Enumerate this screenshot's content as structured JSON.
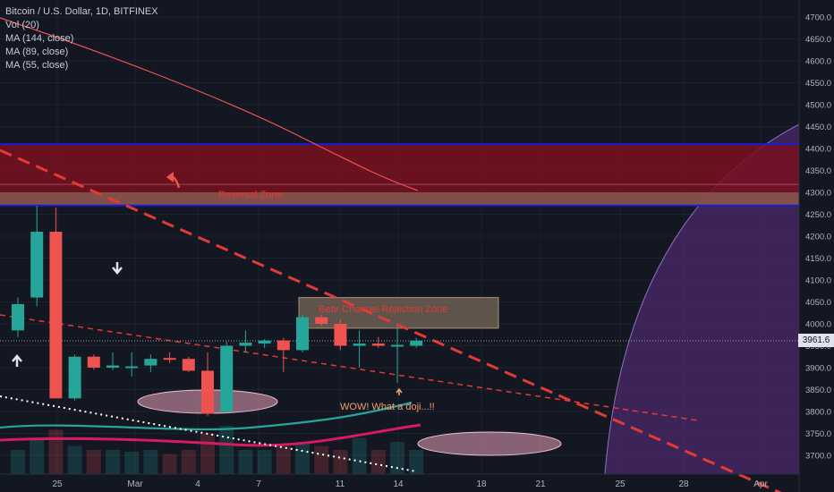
{
  "legend": {
    "symbol": "Bitcoin / U.S. Dollar, 1D, BITFINEX",
    "indicators": [
      "Vol (20)",
      "MA (144, close)",
      "MA (89, close)",
      "MA (55, close)"
    ]
  },
  "price_tag": "3961.6",
  "annotations": {
    "reversal_zone": "Reversal Zone",
    "bear_zone": "Bear Channel Rejection Zone",
    "wow": "WOW! What a doji...!!"
  },
  "colors": {
    "background": "#131722",
    "up_candle": "#26a69a",
    "down_candle": "#ef5350",
    "ma_144": "#ef5350",
    "ma_89": "#26a69a",
    "ma_55": "#d81b60",
    "zone_line": "#1a1ad9",
    "reversal_fill": "#7a1020",
    "trend_dash": "#e53935"
  },
  "chart_data": {
    "type": "candlestick",
    "y_ticks": [
      "3700.0",
      "3750.0",
      "3800.0",
      "3850.0",
      "3900.0",
      "3950.0",
      "4000.0",
      "4050.0",
      "4100.0",
      "4150.0",
      "4200.0",
      "4250.0",
      "4300.0",
      "4350.0",
      "4400.0",
      "4450.0",
      "4500.0",
      "4550.0",
      "4600.0",
      "4650.0",
      "4700.0"
    ],
    "ylim": [
      3680,
      4720
    ],
    "x_ticks": [
      "25",
      "Mar",
      "4",
      "7",
      "11",
      "14",
      "18",
      "21",
      "25",
      "28",
      "Apr"
    ],
    "current_price": 3961.6,
    "reversal_zone": [
      4270,
      4410
    ],
    "bear_zone": [
      3990,
      4060
    ],
    "candles": [
      {
        "o": 3985,
        "h": 4060,
        "l": 3970,
        "c": 4045
      },
      {
        "o": 4060,
        "h": 4270,
        "l": 4040,
        "c": 4210
      },
      {
        "o": 4210,
        "h": 4265,
        "l": 3830,
        "c": 3830
      },
      {
        "o": 3830,
        "h": 3930,
        "l": 3825,
        "c": 3925
      },
      {
        "o": 3925,
        "h": 3930,
        "l": 3895,
        "c": 3900
      },
      {
        "o": 3900,
        "h": 3935,
        "l": 3895,
        "c": 3905
      },
      {
        "o": 3900,
        "h": 3935,
        "l": 3880,
        "c": 3903
      },
      {
        "o": 3905,
        "h": 3930,
        "l": 3890,
        "c": 3920
      },
      {
        "o": 3922,
        "h": 3935,
        "l": 3910,
        "c": 3918
      },
      {
        "o": 3920,
        "h": 3925,
        "l": 3890,
        "c": 3893
      },
      {
        "o": 3893,
        "h": 3935,
        "l": 3790,
        "c": 3795
      },
      {
        "o": 3800,
        "h": 3960,
        "l": 3795,
        "c": 3950
      },
      {
        "o": 3950,
        "h": 3985,
        "l": 3935,
        "c": 3957
      },
      {
        "o": 3955,
        "h": 3965,
        "l": 3945,
        "c": 3962
      },
      {
        "o": 3962,
        "h": 3968,
        "l": 3890,
        "c": 3940
      },
      {
        "o": 3940,
        "h": 4020,
        "l": 3935,
        "c": 4015
      },
      {
        "o": 4015,
        "h": 4020,
        "l": 3995,
        "c": 4000
      },
      {
        "o": 4000,
        "h": 4010,
        "l": 3940,
        "c": 3950
      },
      {
        "o": 3950,
        "h": 3985,
        "l": 3900,
        "c": 3955
      },
      {
        "o": 3955,
        "h": 3970,
        "l": 3945,
        "c": 3950
      },
      {
        "o": 3950,
        "h": 3995,
        "l": 3865,
        "c": 3952
      },
      {
        "o": 3950,
        "h": 3968,
        "l": 3945,
        "c": 3961.6
      }
    ],
    "volume": [
      0.3,
      0.45,
      0.55,
      0.35,
      0.3,
      0.3,
      0.28,
      0.3,
      0.25,
      0.3,
      0.5,
      0.6,
      0.3,
      0.3,
      0.35,
      0.4,
      0.35,
      0.3,
      0.45,
      0.3,
      0.4,
      0.3
    ]
  }
}
